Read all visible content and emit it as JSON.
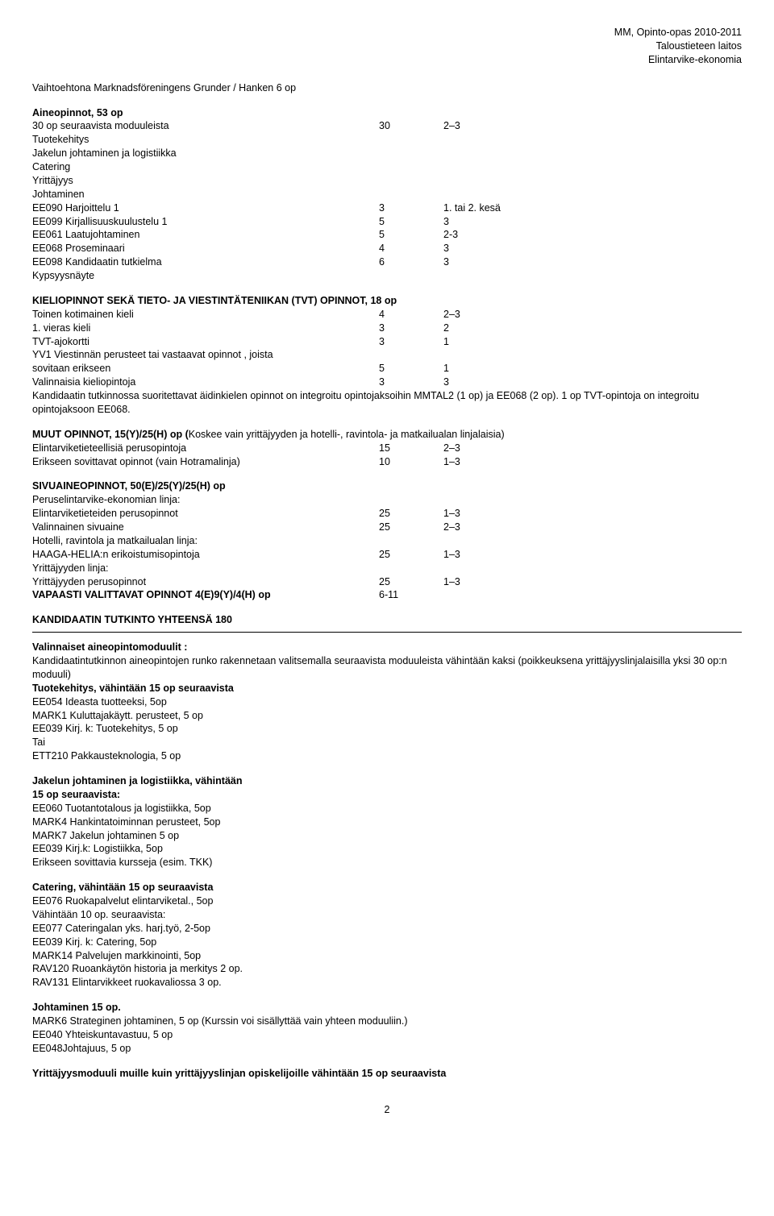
{
  "header": {
    "line1": "MM, Opinto-opas 2010-2011",
    "line2": "Taloustieteen laitos",
    "line3": "Elintarvike-ekonomia"
  },
  "vaihtoehtona": "Vaihtoehtona Marknadsföreningens Grunder / Hanken 6 op",
  "aineopinnot": {
    "title": "Aineopinnot, 53 op",
    "r1": {
      "label": "30 op seuraavista moduuleista",
      "a": "30",
      "b": "2–3"
    },
    "lines": [
      "Tuotekehitys",
      "Jakelun johtaminen ja logistiikka",
      "Catering",
      "Yrittäjyys",
      "Johtaminen"
    ],
    "rows": [
      {
        "label": "EE090 Harjoittelu 1",
        "a": "3",
        "b": "1. tai 2. kesä"
      },
      {
        "label": "EE099 Kirjallisuuskuulustelu 1",
        "a": "5",
        "b": "3"
      },
      {
        "label": "EE061 Laatujohtaminen",
        "a": "5",
        "b": "2-3"
      },
      {
        "label": "EE068 Proseminaari",
        "a": "4",
        "b": "3"
      },
      {
        "label": "EE098 Kandidaatin tutkielma",
        "a": "6",
        "b": "3"
      }
    ],
    "tail": "Kypsyysnäyte"
  },
  "kieli": {
    "title": "KIELIOPINNOT SEKÄ TIETO- JA VIESTINTÄTENIIKAN (TVT) OPINNOT, 18 op",
    "rows": [
      {
        "label": "Toinen kotimainen kieli",
        "a": "4",
        "b": "2–3"
      },
      {
        "label": "1. vieras kieli",
        "a": "3",
        "b": "2"
      },
      {
        "label": "TVT-ajokortti",
        "a": "3",
        "b": "1"
      }
    ],
    "yv1a": "YV1 Viestinnän perusteet tai vastaavat opinnot , joista",
    "yv1b": {
      "label": " sovitaan erikseen",
      "a": "5",
      "b": "1"
    },
    "val": {
      "label": "Valinnaisia kieliopintoja",
      "a": "3",
      "b": "3"
    },
    "note": "Kandidaatin tutkinnossa suoritettavat äidinkielen opinnot on integroitu opintojaksoihin MMTAL2 (1 op) ja EE068 (2 op). 1 op TVT-opintoja on integroitu opintojaksoon EE068."
  },
  "muut": {
    "title_a": "MUUT OPINNOT, 15(Y)/25(H) op (",
    "title_b": "Koskee vain yrittäjyyden ja hotelli-, ravintola- ja matkailualan linjalaisia)",
    "rows": [
      {
        "label": "Elintarviketieteellisiä perusopintoja",
        "a": "15",
        "b": "2–3"
      },
      {
        "label": "Erikseen sovittavat opinnot (vain Hotramalinja)",
        "a": "10",
        "b": "1–3"
      }
    ]
  },
  "sivu": {
    "title": "SIVUAINEOPINNOT, 50(E)/25(Y)/25(H) op",
    "l1": "Peruselintarvike-ekonomian linja:",
    "r1": {
      "label": "Elintarviketieteiden perusopinnot",
      "a": "25",
      "b": "1–3"
    },
    "r2": {
      "label": "Valinnainen sivuaine",
      "a": "25",
      "b": "2–3"
    },
    "l2": "Hotelli, ravintola ja matkailualan linja:",
    "r3": {
      "label": "HAAGA-HELIA:n erikoistumisopintoja",
      "a": "25",
      "b": "1–3"
    },
    "l3": "Yrittäjyyden linja:",
    "r4": {
      "label": "Yrittäjyyden perusopinnot",
      "a": "25",
      "b": "1–3"
    },
    "r5": {
      "label": "VAPAASTI VALITTAVAT OPINNOT 4(E)9(Y)/4(H) op",
      "a": "6-11",
      "b": ""
    }
  },
  "kand": "KANDIDAATIN TUTKINTO YHTEENSÄ 180",
  "valinnaiset": {
    "title": "Valinnaiset aineopintomoduulit :",
    "intro": "Kandidaatintutkinnon aineopintojen runko rakennetaan valitsemalla seuraavista moduuleista vähintään kaksi (poikkeuksena yrittäjyyslinjalaisilla yksi 30 op:n moduuli)",
    "tuote_title": "Tuotekehitys, vähintään 15 op seuraavista",
    "tuote": [
      "EE054 Ideasta tuotteeksi, 5op",
      "MARK1 Kuluttajakäytt. perusteet, 5 op",
      "EE039 Kirj. k: Tuotekehitys, 5 op",
      "Tai",
      "ETT210 Pakkausteknologia, 5 op"
    ],
    "jakelu_title1": "Jakelun johtaminen ja logistiikka, vähintään",
    "jakelu_title2": "15 op seuraavista:",
    "jakelu": [
      "EE060 Tuotantotalous ja logistiikka, 5op",
      "MARK4 Hankintatoiminnan perusteet, 5op",
      "MARK7 Jakelun johtaminen 5 op",
      "EE039 Kirj.k: Logistiikka, 5op",
      "Erikseen sovittavia kursseja (esim. TKK)"
    ],
    "catering_title": "Catering, vähintään 15 op seuraavista",
    "catering": [
      "EE076 Ruokapalvelut elintarviketal., 5op",
      "Vähintään 10 op. seuraavista:",
      "EE077 Cateringalan yks. harj.työ, 2-5op",
      "EE039 Kirj. k: Catering, 5op",
      "MARK14 Palvelujen markkinointi, 5op",
      "RAV120 Ruoankäytön historia ja merkitys 2 op.",
      "RAV131 Elintarvikkeet ruokavaliossa 3 op."
    ],
    "joht_title": "Johtaminen 15 op.",
    "joht": [
      "MARK6 Strateginen johtaminen, 5 op (Kurssin voi sisällyttää vain yhteen moduuliin.)",
      "EE040 Yhteiskuntavastuu, 5 op",
      "EE048Johtajuus, 5 op"
    ],
    "yrit": "Yrittäjyysmoduuli muille kuin yrittäjyyslinjan opiskelijoille vähintään 15 op seuraavista"
  },
  "page": "2"
}
